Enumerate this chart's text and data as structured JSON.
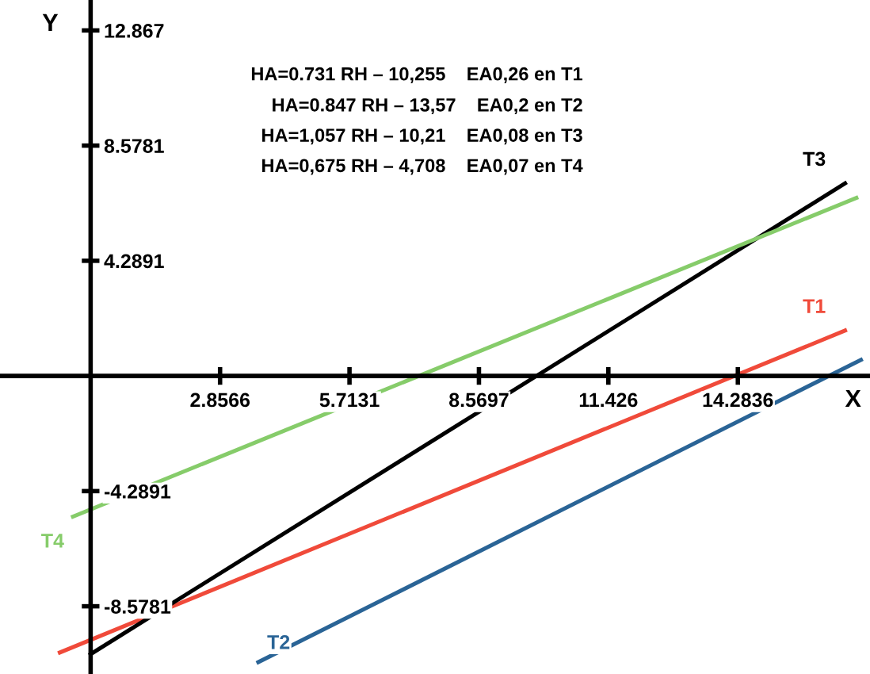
{
  "chart_data": {
    "type": "line",
    "xlabel": "X",
    "ylabel": "Y",
    "xlim": [
      -2.0,
      17.2
    ],
    "ylim": [
      -11.1,
      14.0
    ],
    "xticks": [
      2.8566,
      5.7131,
      8.5697,
      11.426,
      14.2836
    ],
    "yticks": [
      -8.5781,
      -4.2891,
      4.2891,
      8.5781,
      12.867
    ],
    "grid": false,
    "legend": false,
    "marker": "none",
    "line_style": "solid",
    "series": [
      {
        "name": "T1",
        "color": "#f04a3a",
        "x": [
          -0.68,
          16.65
        ],
        "values": [
          -10.3,
          1.69
        ]
      },
      {
        "name": "T2",
        "color": "#2a6496",
        "x": [
          3.7,
          17.0
        ],
        "values": [
          -10.66,
          0.6
        ]
      },
      {
        "name": "T3",
        "color": "#000000",
        "x": [
          0.0,
          16.65
        ],
        "values": [
          -10.36,
          7.17
        ]
      },
      {
        "name": "T4",
        "color": "#86cc6a",
        "x": [
          -0.39,
          16.9
        ],
        "values": [
          -5.24,
          6.63
        ]
      }
    ],
    "annotations": [
      "HA=0.731 RH – 10,255    EA0,26 en T1",
      "HA=0.847 RH – 13,57    EA0,2 en T2",
      "HA=1,057 RH – 10,21    EA0,08 en T3",
      "HA=0,675 RH – 4,708    EA0,07 en T4"
    ]
  }
}
